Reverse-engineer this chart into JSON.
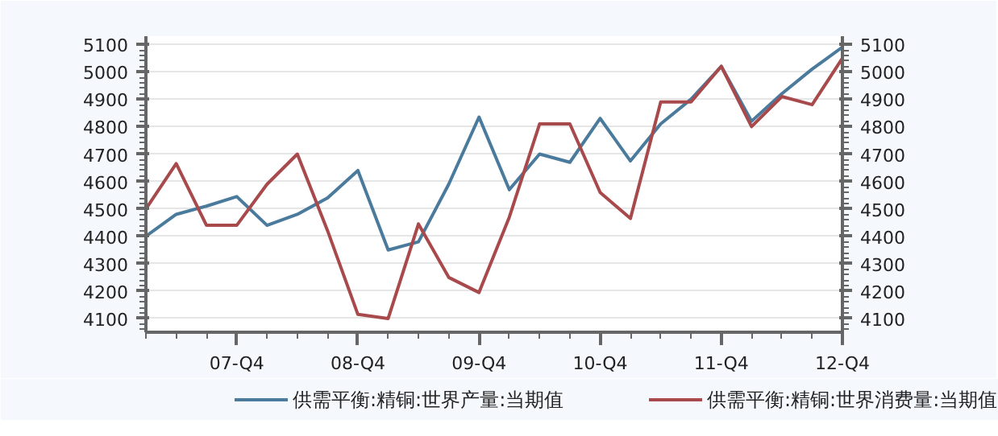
{
  "chart_data": {
    "type": "line",
    "categories": [
      null,
      null,
      null,
      "07-Q4",
      null,
      null,
      null,
      "08-Q4",
      null,
      null,
      null,
      "09-Q4",
      null,
      null,
      null,
      "10-Q4",
      null,
      null,
      null,
      "11-Q4",
      null,
      null,
      null,
      "12-Q4"
    ],
    "series": [
      {
        "name": "供需平衡:精铜:世界产量:当期值",
        "color": "#4a7a9c",
        "values": [
          4400,
          4480,
          4510,
          4545,
          4440,
          4480,
          4540,
          4640,
          4350,
          4380,
          4590,
          4835,
          4570,
          4700,
          4670,
          4830,
          4675,
          4810,
          4900,
          5020,
          4820,
          4920,
          5010,
          5090
        ]
      },
      {
        "name": "供需平衡:精铜:世界消费量:当期值",
        "color": "#a8494c",
        "values": [
          4500,
          4665,
          4440,
          4440,
          4590,
          4700,
          4420,
          4115,
          4100,
          4445,
          4250,
          4195,
          4470,
          4810,
          4810,
          4560,
          4465,
          4890,
          4890,
          5020,
          4800,
          4910,
          4880,
          5050
        ]
      }
    ],
    "ylim": [
      4050,
      5130
    ],
    "yticks": [
      4100,
      4200,
      4300,
      4400,
      4500,
      4600,
      4700,
      4800,
      4900,
      5000,
      5100
    ],
    "y2lim": [
      4050,
      5130
    ],
    "y2ticks": [
      4100,
      4200,
      4300,
      4400,
      4500,
      4600,
      4700,
      4800,
      4900,
      5000,
      5100
    ],
    "grid": "y",
    "legend": "bottom",
    "marker": "none",
    "line_style": "solid"
  }
}
